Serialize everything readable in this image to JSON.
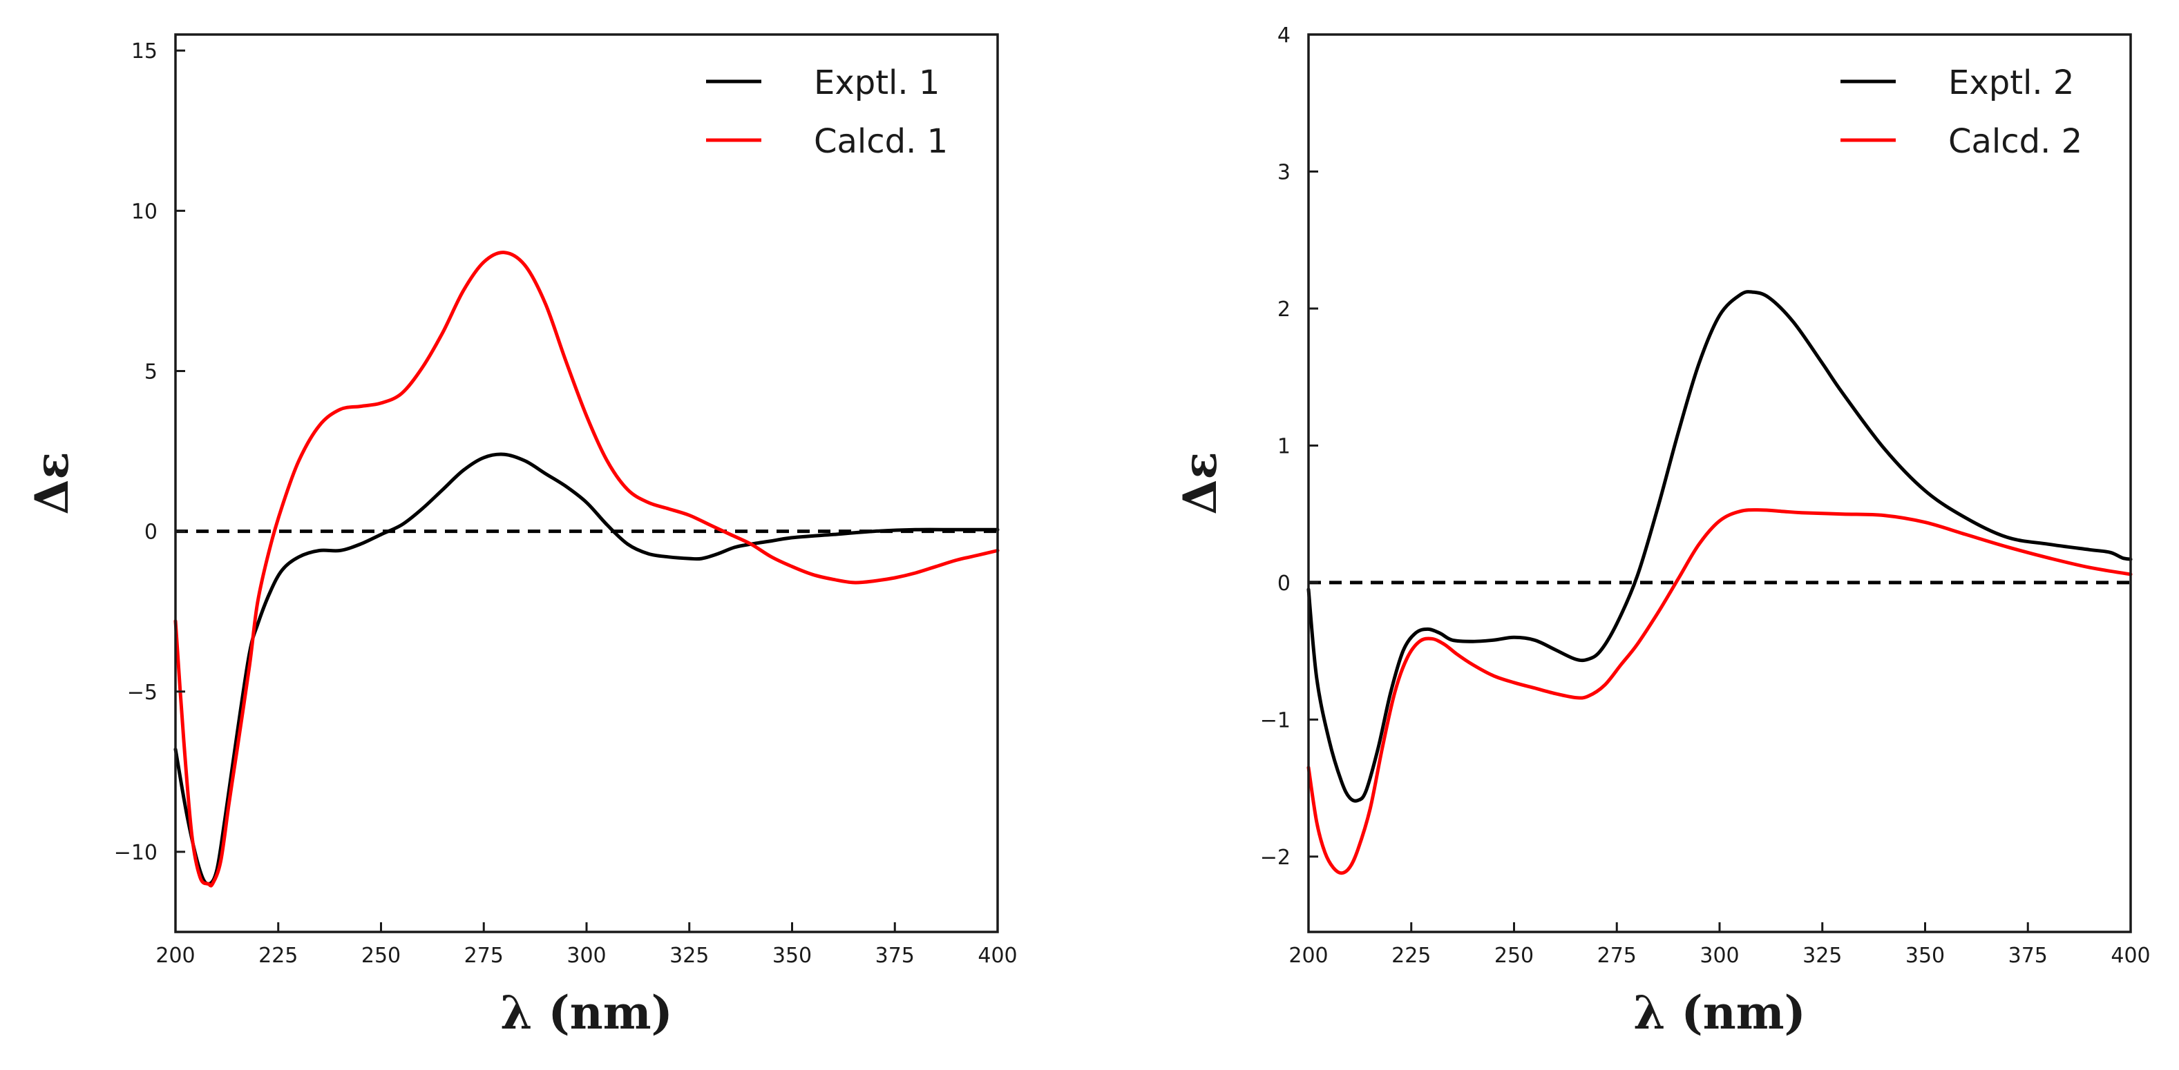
{
  "chart_data": [
    {
      "type": "line",
      "xlabel": "λ (nm)",
      "ylabel": "Δε",
      "xlim": [
        200,
        400
      ],
      "ylim": [
        -12.5,
        15.5
      ],
      "x_ticks": [
        200,
        225,
        250,
        275,
        300,
        325,
        350,
        375,
        400
      ],
      "y_ticks": [
        -10,
        -5,
        0,
        5,
        10,
        15
      ],
      "y_tick_labels": [
        "−10",
        "−5",
        "0",
        "5",
        "10",
        "15"
      ],
      "zero_line": true,
      "legend_position": "top-right",
      "series": [
        {
          "name": "Exptl. 1",
          "color": "#000000",
          "x": [
            200,
            203,
            206,
            208,
            210,
            212,
            215,
            218,
            220,
            223,
            226,
            230,
            235,
            240,
            245,
            250,
            255,
            260,
            265,
            270,
            275,
            280,
            285,
            290,
            295,
            300,
            305,
            310,
            315,
            320,
            325,
            328,
            332,
            336,
            340,
            345,
            350,
            360,
            370,
            380,
            390,
            400
          ],
          "y": [
            -6.8,
            -9.0,
            -10.6,
            -11.0,
            -10.6,
            -9.0,
            -6.3,
            -3.8,
            -2.9,
            -1.9,
            -1.2,
            -0.8,
            -0.6,
            -0.6,
            -0.4,
            -0.1,
            0.2,
            0.7,
            1.3,
            1.9,
            2.3,
            2.4,
            2.2,
            1.8,
            1.4,
            0.9,
            0.2,
            -0.4,
            -0.7,
            -0.8,
            -0.85,
            -0.85,
            -0.7,
            -0.5,
            -0.4,
            -0.3,
            -0.2,
            -0.1,
            0.0,
            0.05,
            0.05,
            0.05
          ]
        },
        {
          "name": "Calcd. 1",
          "color": "#ff0000",
          "x": [
            200,
            202,
            204,
            206,
            208,
            209,
            211,
            213,
            215,
            218,
            220,
            223,
            226,
            230,
            235,
            240,
            245,
            250,
            255,
            260,
            265,
            270,
            275,
            280,
            285,
            290,
            295,
            300,
            305,
            310,
            315,
            320,
            325,
            330,
            335,
            340,
            345,
            350,
            355,
            360,
            365,
            370,
            375,
            380,
            385,
            390,
            395,
            400
          ],
          "y": [
            -2.8,
            -6.5,
            -9.5,
            -10.8,
            -11.0,
            -11.0,
            -10.3,
            -8.5,
            -6.8,
            -4.2,
            -2.2,
            -0.5,
            0.8,
            2.2,
            3.3,
            3.8,
            3.9,
            4.0,
            4.3,
            5.1,
            6.2,
            7.5,
            8.4,
            8.7,
            8.3,
            7.1,
            5.3,
            3.6,
            2.2,
            1.3,
            0.9,
            0.7,
            0.5,
            0.2,
            -0.1,
            -0.4,
            -0.8,
            -1.1,
            -1.35,
            -1.5,
            -1.6,
            -1.55,
            -1.45,
            -1.3,
            -1.1,
            -0.9,
            -0.75,
            -0.6
          ]
        }
      ]
    },
    {
      "type": "line",
      "xlabel": "λ (nm)",
      "ylabel": "Δε",
      "xlim": [
        200,
        400
      ],
      "ylim": [
        -2.55,
        4.0
      ],
      "x_ticks": [
        200,
        225,
        250,
        275,
        300,
        325,
        350,
        375,
        400
      ],
      "y_ticks": [
        -2,
        -1,
        0,
        1,
        2,
        3,
        4
      ],
      "y_tick_labels": [
        "−2",
        "−1",
        "0",
        "1",
        "2",
        "3",
        "4"
      ],
      "zero_line": true,
      "legend_position": "top-right",
      "series": [
        {
          "name": "Exptl. 2",
          "color": "#000000",
          "x": [
            200,
            202,
            205,
            208,
            210,
            212,
            214,
            217,
            220,
            223,
            226,
            229,
            232,
            235,
            240,
            245,
            250,
            255,
            260,
            265,
            268,
            271,
            275,
            280,
            285,
            290,
            295,
            300,
            305,
            308,
            312,
            318,
            325,
            330,
            340,
            350,
            360,
            370,
            380,
            390,
            395,
            398,
            400
          ],
          "y": [
            -0.05,
            -0.7,
            -1.15,
            -1.45,
            -1.57,
            -1.59,
            -1.52,
            -1.2,
            -0.8,
            -0.5,
            -0.37,
            -0.34,
            -0.37,
            -0.42,
            -0.43,
            -0.42,
            -0.4,
            -0.42,
            -0.49,
            -0.56,
            -0.56,
            -0.5,
            -0.3,
            0.05,
            0.55,
            1.1,
            1.6,
            1.95,
            2.1,
            2.12,
            2.08,
            1.9,
            1.6,
            1.38,
            0.98,
            0.67,
            0.47,
            0.33,
            0.28,
            0.24,
            0.22,
            0.18,
            0.17
          ]
        },
        {
          "name": "Calcd. 2",
          "color": "#ff0000",
          "x": [
            200,
            202,
            204,
            206,
            208,
            210,
            212,
            215,
            218,
            221,
            224,
            227,
            230,
            233,
            236,
            240,
            245,
            250,
            255,
            260,
            265,
            268,
            272,
            276,
            280,
            285,
            290,
            295,
            300,
            305,
            310,
            315,
            320,
            330,
            340,
            350,
            360,
            370,
            380,
            390,
            400
          ],
          "y": [
            -1.35,
            -1.75,
            -1.97,
            -2.08,
            -2.12,
            -2.08,
            -1.95,
            -1.65,
            -1.2,
            -0.8,
            -0.55,
            -0.43,
            -0.41,
            -0.45,
            -0.52,
            -0.6,
            -0.68,
            -0.73,
            -0.77,
            -0.81,
            -0.84,
            -0.83,
            -0.75,
            -0.6,
            -0.45,
            -0.22,
            0.03,
            0.28,
            0.45,
            0.52,
            0.53,
            0.52,
            0.51,
            0.5,
            0.49,
            0.44,
            0.35,
            0.26,
            0.18,
            0.11,
            0.06
          ]
        }
      ]
    }
  ]
}
